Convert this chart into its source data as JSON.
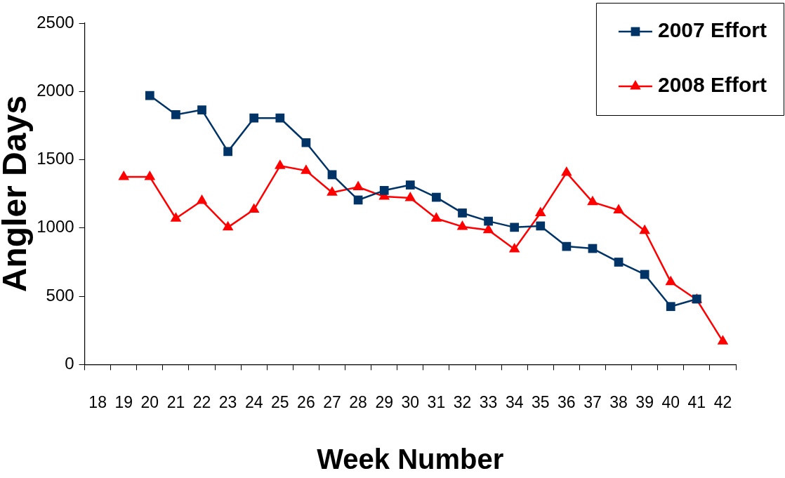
{
  "chart_data": {
    "type": "line",
    "xlabel": "Week Number",
    "ylabel": "Angler Days",
    "categories": [
      "18",
      "19",
      "20",
      "21",
      "22",
      "23",
      "24",
      "25",
      "26",
      "27",
      "28",
      "29",
      "30",
      "31",
      "32",
      "33",
      "34",
      "35",
      "36",
      "37",
      "38",
      "39",
      "40",
      "41",
      "42"
    ],
    "series": [
      {
        "name": "2007 Effort",
        "color": "#003366",
        "marker": "square",
        "values": [
          null,
          null,
          1970,
          1830,
          1865,
          1560,
          1805,
          1805,
          1625,
          1390,
          1205,
          1275,
          1315,
          1225,
          1110,
          1050,
          1005,
          1015,
          865,
          850,
          750,
          660,
          425,
          480,
          null
        ]
      },
      {
        "name": "2008 Effort",
        "color": "#ff0000",
        "marker": "triangle",
        "values": [
          null,
          1375,
          1375,
          1070,
          1200,
          1005,
          1135,
          1455,
          1420,
          1260,
          1300,
          1230,
          1220,
          1070,
          1010,
          985,
          845,
          1110,
          1405,
          1190,
          1130,
          980,
          605,
          475,
          170
        ]
      }
    ],
    "ylim": [
      0,
      2500
    ],
    "yticks": [
      0,
      500,
      1000,
      1500,
      2000,
      2500
    ],
    "legend": "top right",
    "line_style": "solid"
  }
}
